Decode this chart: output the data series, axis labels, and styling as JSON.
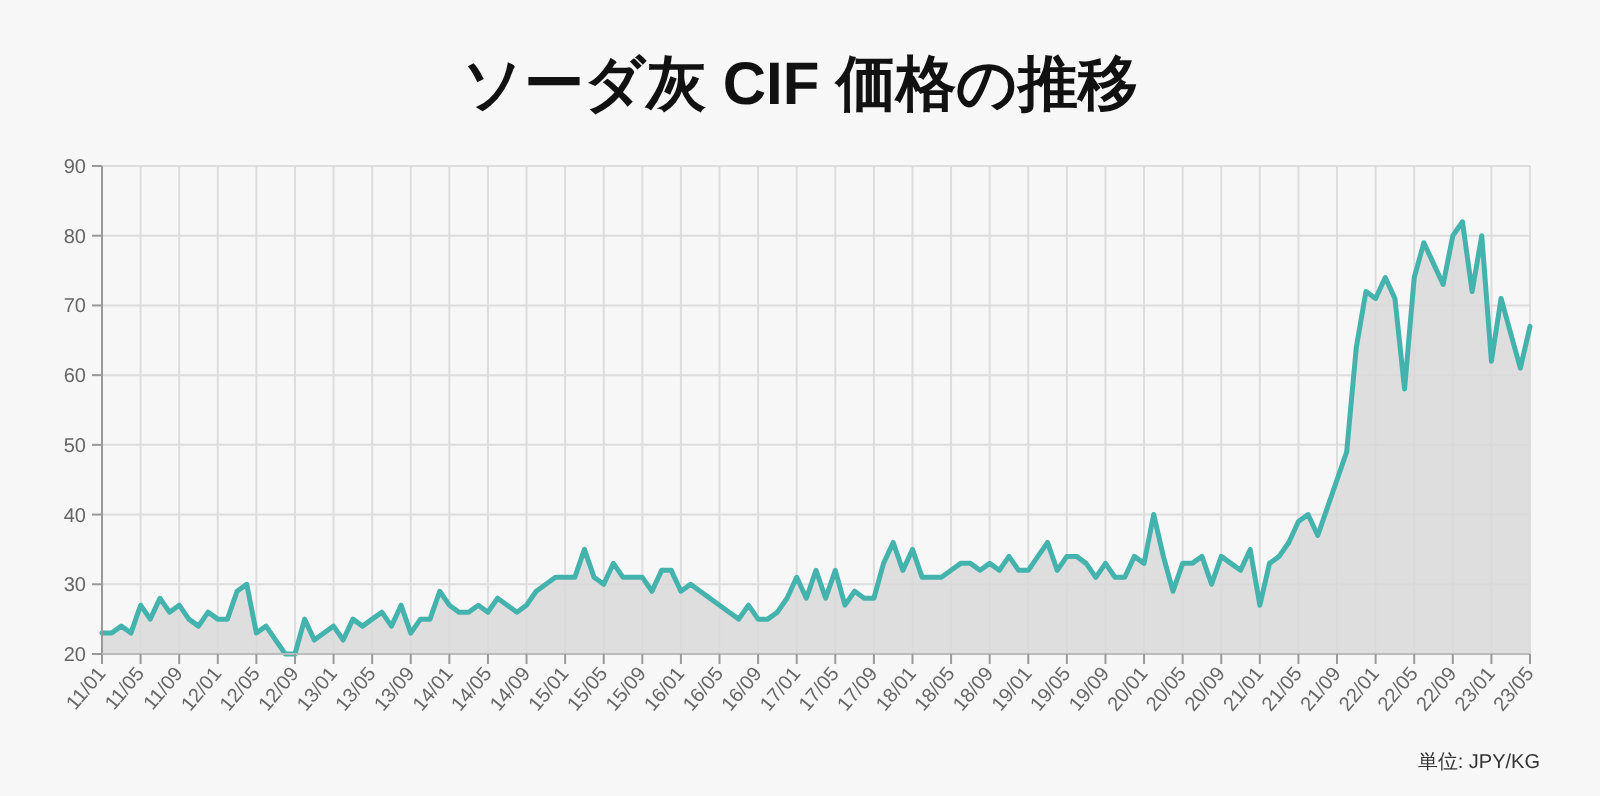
{
  "chart_data": {
    "type": "area",
    "title": "ソーダ灰 CIF 価格の推移",
    "categories": [
      "11/01",
      null,
      null,
      null,
      "11/05",
      null,
      null,
      null,
      "11/09",
      null,
      null,
      null,
      "12/01",
      null,
      null,
      null,
      "12/05",
      null,
      null,
      null,
      "12/09",
      null,
      null,
      null,
      "13/01",
      null,
      null,
      null,
      "13/05",
      null,
      null,
      null,
      "13/09",
      null,
      null,
      null,
      "14/01",
      null,
      null,
      null,
      "14/05",
      null,
      null,
      null,
      "14/09",
      null,
      null,
      null,
      "15/01",
      null,
      null,
      null,
      "15/05",
      null,
      null,
      null,
      "15/09",
      null,
      null,
      null,
      "16/01",
      null,
      null,
      null,
      "16/05",
      null,
      null,
      null,
      "16/09",
      null,
      null,
      null,
      "17/01",
      null,
      null,
      null,
      "17/05",
      null,
      null,
      null,
      "17/09",
      null,
      null,
      null,
      "18/01",
      null,
      null,
      null,
      "18/05",
      null,
      null,
      null,
      "18/09",
      null,
      null,
      null,
      "19/01",
      null,
      null,
      null,
      "19/05",
      null,
      null,
      null,
      "19/09",
      null,
      null,
      null,
      "20/01",
      null,
      null,
      null,
      "20/05",
      null,
      null,
      null,
      "20/09",
      null,
      null,
      null,
      "21/01",
      null,
      null,
      null,
      "21/05",
      null,
      null,
      null,
      "21/09",
      null,
      null,
      null,
      "22/01",
      null,
      null,
      null,
      "22/05",
      null,
      null,
      null,
      "22/09",
      null,
      null,
      null,
      "23/01",
      null,
      null,
      null,
      "23/05"
    ],
    "series": [
      {
        "color": "#45b3ad",
        "values": [
          23,
          23,
          24,
          23,
          27,
          25,
          28,
          26,
          27,
          25,
          24,
          26,
          25,
          25,
          29,
          30,
          23,
          24,
          22,
          20,
          20,
          25,
          22,
          23,
          24,
          22,
          25,
          24,
          25,
          26,
          24,
          27,
          23,
          25,
          25,
          29,
          27,
          26,
          26,
          27,
          26,
          28,
          27,
          26,
          27,
          29,
          30,
          31,
          31,
          31,
          35,
          31,
          30,
          33,
          31,
          31,
          31,
          29,
          32,
          32,
          29,
          30,
          29,
          28,
          27,
          26,
          25,
          27,
          25,
          25,
          26,
          28,
          31,
          28,
          32,
          28,
          32,
          27,
          29,
          28,
          28,
          33,
          36,
          32,
          35,
          31,
          31,
          31,
          32,
          33,
          33,
          32,
          33,
          32,
          34,
          32,
          32,
          34,
          36,
          32,
          34,
          34,
          33,
          31,
          33,
          31,
          31,
          34,
          33,
          40,
          34,
          29,
          33,
          33,
          34,
          30,
          34,
          33,
          32,
          35,
          27,
          33,
          34,
          36,
          39,
          40,
          37,
          41,
          45,
          49,
          64,
          72,
          71,
          74,
          71,
          58,
          74,
          79,
          76,
          73,
          80,
          82,
          72,
          80,
          62,
          71,
          66,
          61,
          67
        ]
      }
    ],
    "ylim": [
      20,
      90
    ],
    "yticks": [
      20,
      30,
      40,
      50,
      60,
      70,
      80,
      90
    ],
    "grid": true,
    "annotations": [
      "単位: JPY/KG"
    ]
  }
}
